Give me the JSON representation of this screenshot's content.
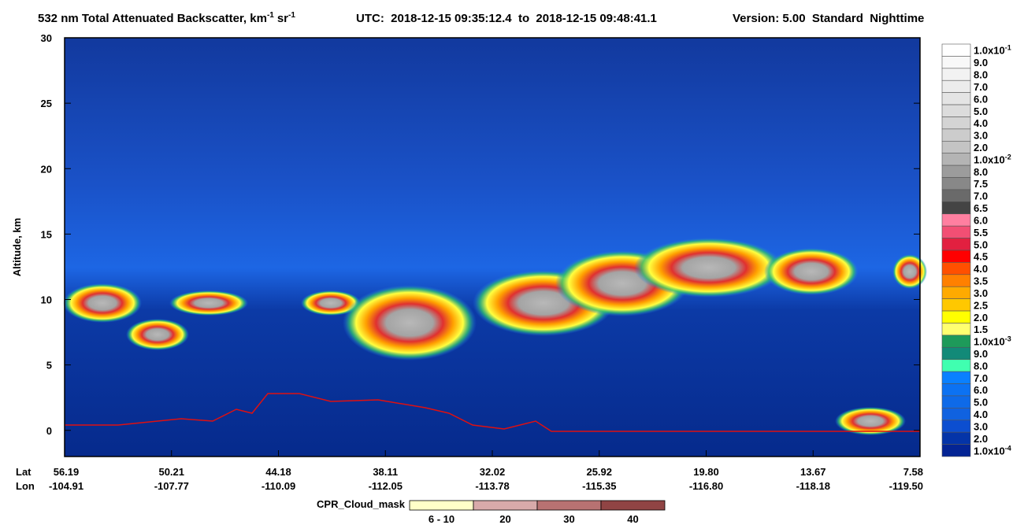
{
  "chart_data": {
    "type": "heatmap",
    "title_parts": [
      "532 nm Total Attenuated Backscatter, km",
      "-1",
      "sr",
      "-1"
    ],
    "time_range": "UTC:  2018-12-15 09:35:12.4  to  2018-12-15 09:48:41.1",
    "version": "Version: 5.00  Standard  Nighttime",
    "ylabel": "Altitude, km",
    "ylim": [
      -2,
      30
    ],
    "yticks": [
      0,
      5,
      10,
      15,
      20,
      25,
      30
    ],
    "x_row_labels": [
      "Lat",
      "Lon"
    ],
    "lat_ticks": [
      "56.19",
      "50.21",
      "44.18",
      "38.11",
      "32.02",
      "25.92",
      "19.80",
      "13.67",
      "7.58"
    ],
    "lon_ticks": [
      "-104.91",
      "-107.77",
      "-110.09",
      "-112.05",
      "-113.78",
      "-115.35",
      "-116.80",
      "-118.18",
      "-119.50"
    ],
    "colorbar": [
      {
        "label": "1.0x10",
        "exponent": "-1",
        "color": "#ffffff"
      },
      {
        "label": "9.0",
        "color": "#f8f8f8"
      },
      {
        "label": "8.0",
        "color": "#f2f2f2"
      },
      {
        "label": "7.0",
        "color": "#ececec"
      },
      {
        "label": "6.0",
        "color": "#e4e4e4"
      },
      {
        "label": "5.0",
        "color": "#dcdcdc"
      },
      {
        "label": "4.0",
        "color": "#d4d4d4"
      },
      {
        "label": "3.0",
        "color": "#cccccc"
      },
      {
        "label": "2.0",
        "color": "#c4c4c4"
      },
      {
        "label": "1.0x10",
        "exponent": "-2",
        "color": "#b4b4b4"
      },
      {
        "label": "8.0",
        "color": "#9c9c9c"
      },
      {
        "label": "7.5",
        "color": "#888888"
      },
      {
        "label": "7.0",
        "color": "#6a6a6a"
      },
      {
        "label": "6.5",
        "color": "#444444"
      },
      {
        "label": "6.0",
        "color": "#ff7fa0"
      },
      {
        "label": "5.5",
        "color": "#f24f74"
      },
      {
        "label": "5.0",
        "color": "#e22040"
      },
      {
        "label": "4.5",
        "color": "#ff0000"
      },
      {
        "label": "4.0",
        "color": "#ff5000"
      },
      {
        "label": "3.5",
        "color": "#ff8000"
      },
      {
        "label": "3.0",
        "color": "#ffaa00"
      },
      {
        "label": "2.5",
        "color": "#ffc800"
      },
      {
        "label": "2.0",
        "color": "#ffff00"
      },
      {
        "label": "1.5",
        "color": "#ffff70"
      },
      {
        "label": "1.0x10",
        "exponent": "-3",
        "color": "#1e9a5a"
      },
      {
        "label": "9.0",
        "color": "#128a78"
      },
      {
        "label": "8.0",
        "color": "#40ffb0"
      },
      {
        "label": "7.0",
        "color": "#0a80ff"
      },
      {
        "label": "6.0",
        "color": "#0c72f2"
      },
      {
        "label": "5.0",
        "color": "#0e6ae8"
      },
      {
        "label": "4.0",
        "color": "#1062e0"
      },
      {
        "label": "3.0",
        "color": "#0c4ed0"
      },
      {
        "label": "2.0",
        "color": "#0434a8"
      },
      {
        "label": "1.0x10",
        "exponent": "-4",
        "color": "#042494"
      }
    ],
    "cloud_mask_legend": {
      "title": "CPR_Cloud_mask",
      "items": [
        {
          "label": "6 - 10",
          "color": "#ffffc8"
        },
        {
          "label": "20",
          "color": "#d8aaaa"
        },
        {
          "label": "30",
          "color": "#b87272"
        },
        {
          "label": "40",
          "color": "#904444"
        }
      ]
    }
  }
}
